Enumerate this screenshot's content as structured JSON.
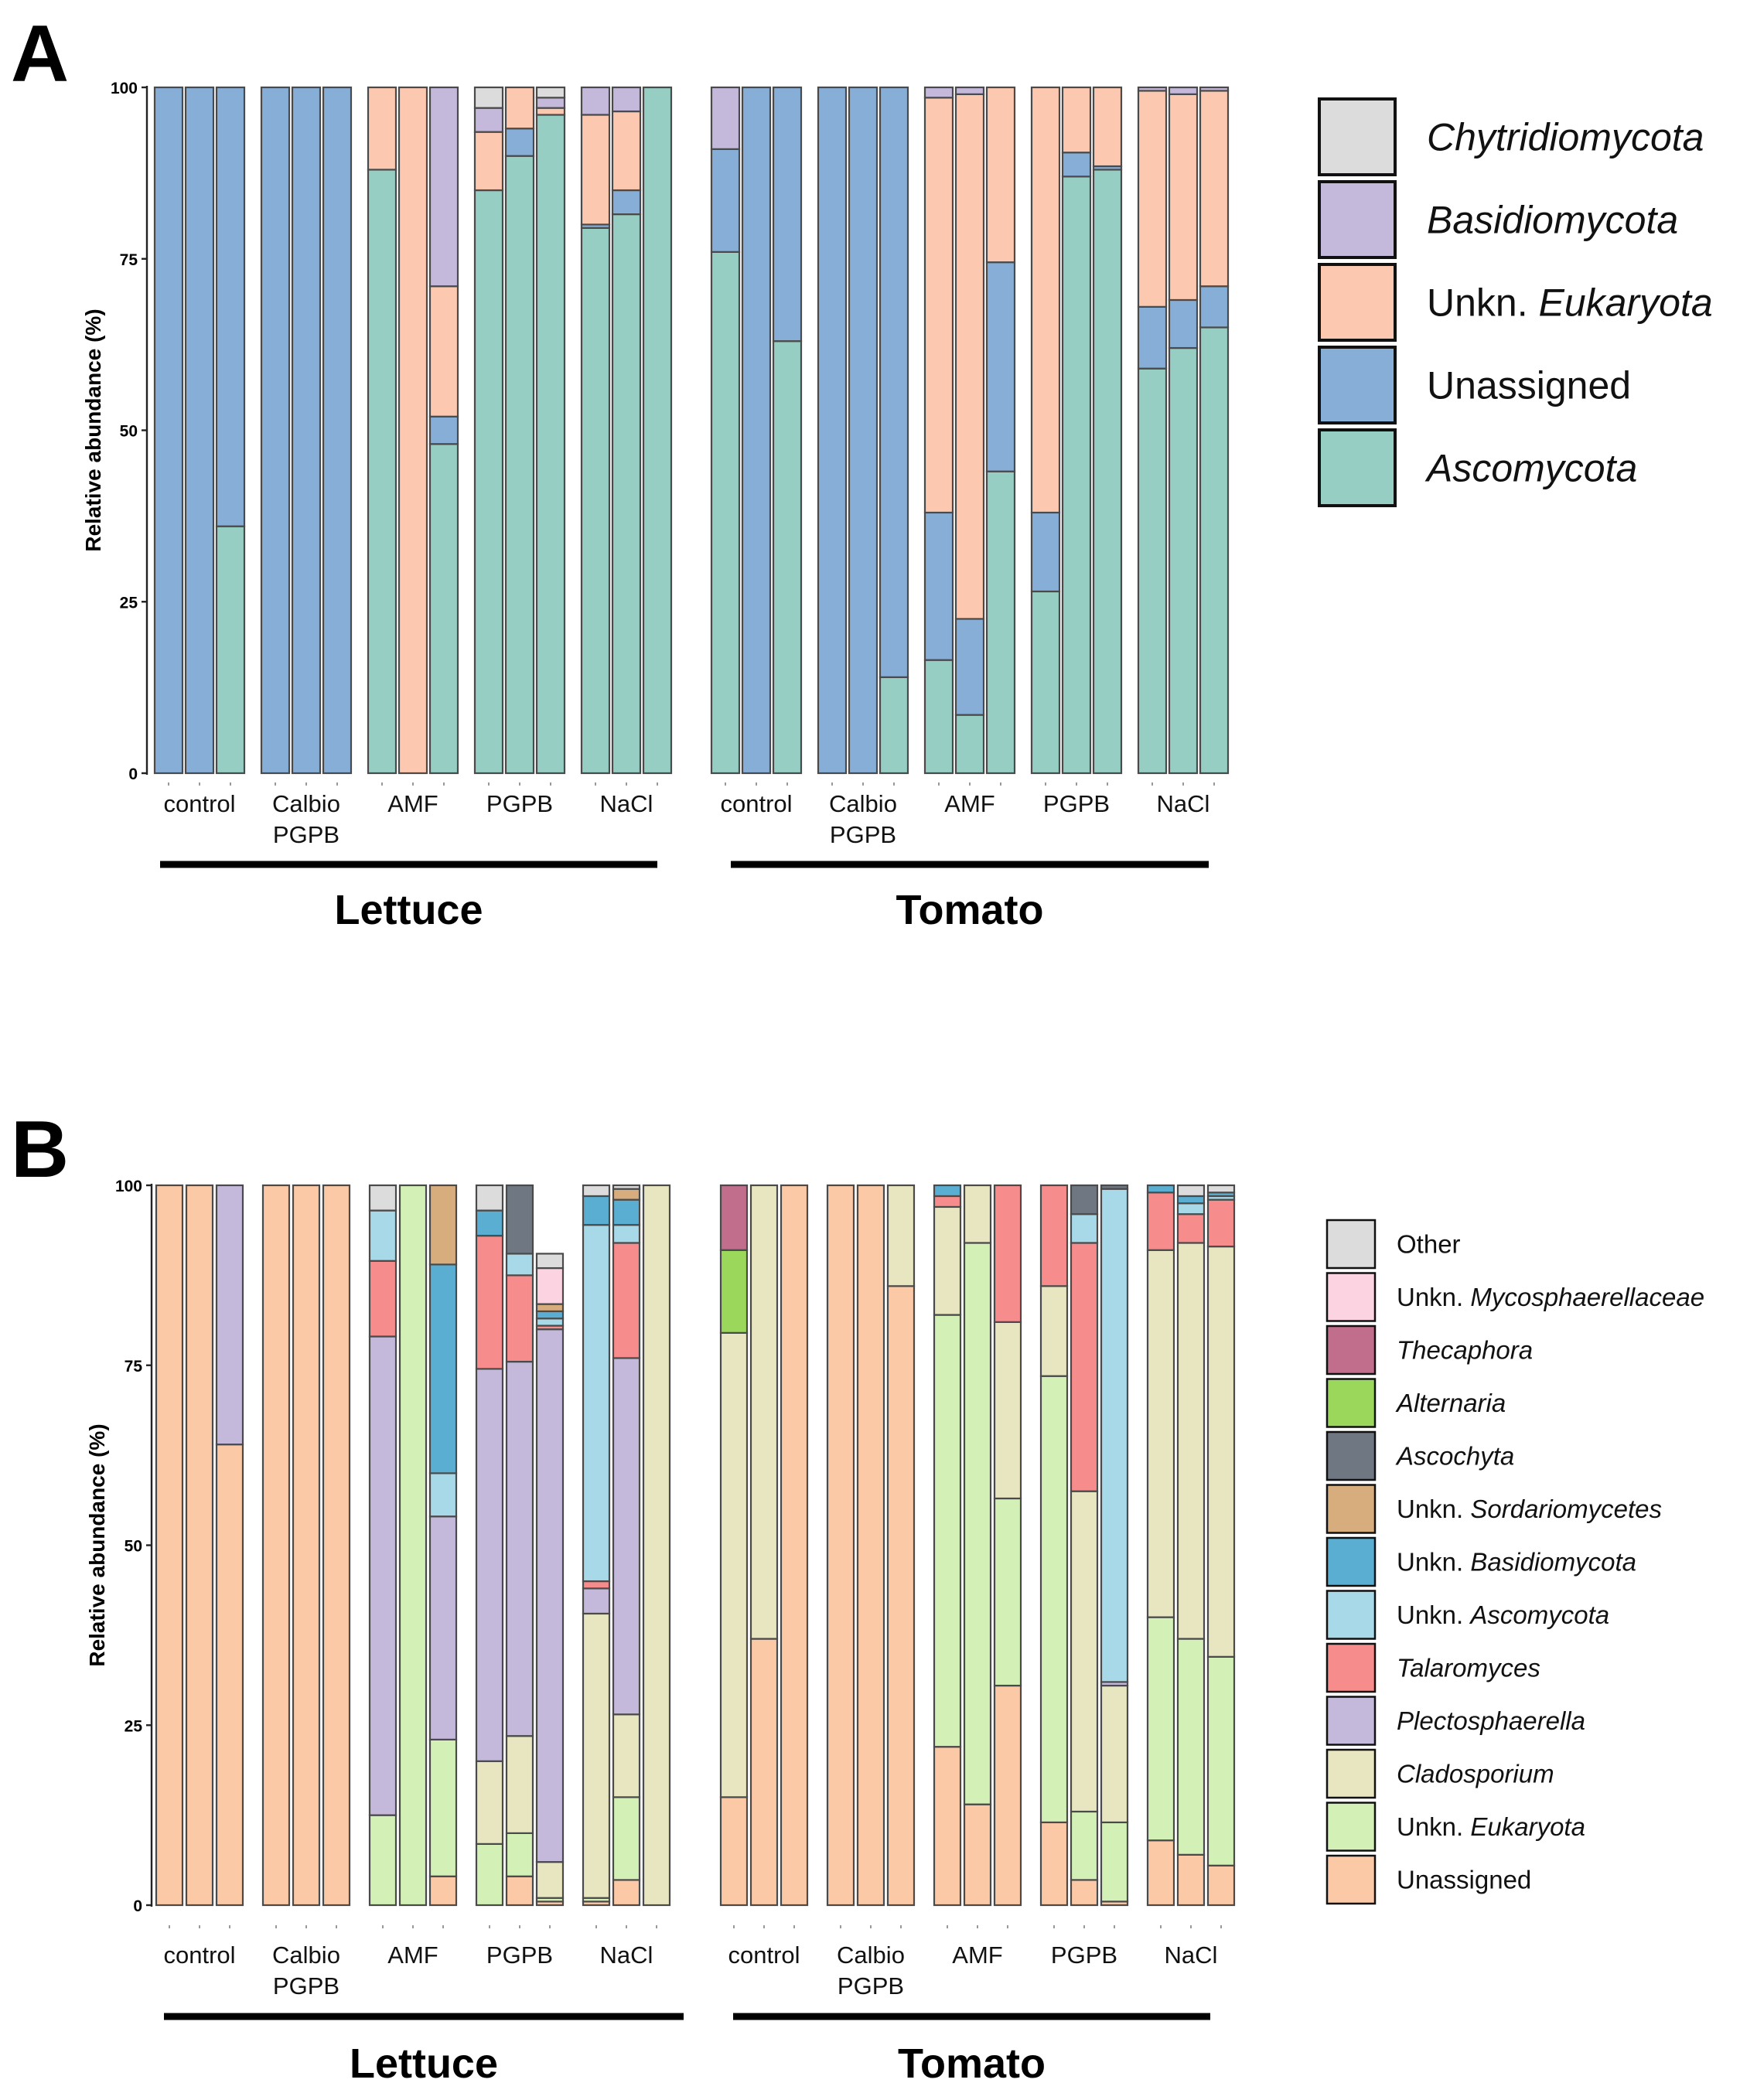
{
  "panel_labels": [
    "A",
    "B"
  ],
  "chart_data": [
    {
      "type": "bar",
      "stacked": true,
      "title": "A",
      "ylabel": "Relative abundance (%)",
      "ylim": [
        0,
        100
      ],
      "yticks": [
        "0",
        "25",
        "50",
        "75",
        "100"
      ],
      "groups": [
        {
          "crop": "Lettuce",
          "labels": [
            "control"
          ]
        },
        {
          "crop": "Lettuce",
          "labels": [
            "Calbio",
            "PGPB"
          ]
        },
        {
          "crop": "Lettuce",
          "labels": [
            "AMF"
          ]
        },
        {
          "crop": "Lettuce",
          "labels": [
            "PGPB"
          ]
        },
        {
          "crop": "Lettuce",
          "labels": [
            "NaCl"
          ]
        },
        {
          "crop": "Tomato",
          "labels": [
            "control"
          ]
        },
        {
          "crop": "Tomato",
          "labels": [
            "Calbio",
            "PGPB"
          ]
        },
        {
          "crop": "Tomato",
          "labels": [
            "AMF"
          ]
        },
        {
          "crop": "Tomato",
          "labels": [
            "PGPB"
          ]
        },
        {
          "crop": "Tomato",
          "labels": [
            "NaCl"
          ]
        }
      ],
      "crops": [
        "Lettuce",
        "Tomato"
      ],
      "legend": [
        {
          "name": "Chytridiomycota",
          "parts": [
            {
              "t": "Chytridiomycota",
              "i": true
            }
          ],
          "color": "#dcdcdc"
        },
        {
          "name": "Basidiomycota",
          "parts": [
            {
              "t": "Basidiomycota",
              "i": true
            }
          ],
          "color": "#c4b8db"
        },
        {
          "name": "Unkn. Eukaryota",
          "parts": [
            {
              "t": "Unkn. ",
              "i": false
            },
            {
              "t": "Eukaryota",
              "i": true
            }
          ],
          "color": "#fcc9b0"
        },
        {
          "name": "Unassigned",
          "parts": [
            {
              "t": "Unassigned",
              "i": false
            }
          ],
          "color": "#87aed6"
        },
        {
          "name": "Ascomycota",
          "parts": [
            {
              "t": "Ascomycota",
              "i": true
            }
          ],
          "color": "#97cec3"
        }
      ],
      "series_order_bottom_up": [
        "Ascomycota",
        "Unassigned",
        "Unkn. Eukaryota",
        "Basidiomycota",
        "Chytridiomycota"
      ],
      "bars": [
        [
          0,
          100,
          0,
          0,
          0
        ],
        [
          0,
          100,
          0,
          0,
          0
        ],
        [
          36,
          64,
          0,
          0,
          0
        ],
        [
          0,
          100,
          0,
          0,
          0
        ],
        [
          0,
          100,
          0,
          0,
          0
        ],
        [
          0,
          100,
          0,
          0,
          0
        ],
        [
          88,
          0,
          12,
          0,
          0
        ],
        [
          0,
          0,
          100,
          0,
          0
        ],
        [
          48,
          4,
          19,
          29,
          0
        ],
        [
          85,
          0,
          8.5,
          3.5,
          3
        ],
        [
          90,
          4,
          6,
          0,
          0
        ],
        [
          96,
          0,
          1,
          1.5,
          1.5
        ],
        [
          79.5,
          0.5,
          16,
          4,
          0
        ],
        [
          81.5,
          3.5,
          11.5,
          3.5,
          0
        ],
        [
          100,
          0,
          0,
          0,
          0
        ],
        [
          76,
          15,
          0,
          9,
          0
        ],
        [
          0,
          100,
          0,
          0,
          0
        ],
        [
          63,
          37,
          0,
          0,
          0
        ],
        [
          0,
          100,
          0,
          0,
          0
        ],
        [
          0,
          100,
          0,
          0,
          0
        ],
        [
          14,
          86,
          0,
          0,
          0
        ],
        [
          16.5,
          21.5,
          60.5,
          1.5,
          0
        ],
        [
          8.5,
          14,
          76.5,
          1,
          0
        ],
        [
          44,
          30.5,
          25.5,
          0,
          0
        ],
        [
          26.5,
          11.5,
          62,
          0,
          0
        ],
        [
          87,
          3.5,
          9.5,
          0,
          0
        ],
        [
          88,
          0.5,
          11.5,
          0,
          0
        ],
        [
          59,
          9,
          31.5,
          0.5,
          0
        ],
        [
          62,
          7,
          30,
          1,
          0
        ],
        [
          65,
          6,
          28.5,
          0.5,
          0
        ]
      ]
    },
    {
      "type": "bar",
      "stacked": true,
      "title": "B",
      "ylabel": "Relative abundance (%)",
      "ylim": [
        0,
        100
      ],
      "yticks": [
        "0",
        "25",
        "50",
        "75",
        "100"
      ],
      "groups": [
        {
          "crop": "Lettuce",
          "labels": [
            "control"
          ]
        },
        {
          "crop": "Lettuce",
          "labels": [
            "Calbio",
            "PGPB"
          ]
        },
        {
          "crop": "Lettuce",
          "labels": [
            "AMF"
          ]
        },
        {
          "crop": "Lettuce",
          "labels": [
            "PGPB"
          ]
        },
        {
          "crop": "Lettuce",
          "labels": [
            "NaCl"
          ]
        },
        {
          "crop": "Tomato",
          "labels": [
            "control"
          ]
        },
        {
          "crop": "Tomato",
          "labels": [
            "Calbio",
            "PGPB"
          ]
        },
        {
          "crop": "Tomato",
          "labels": [
            "AMF"
          ]
        },
        {
          "crop": "Tomato",
          "labels": [
            "PGPB"
          ]
        },
        {
          "crop": "Tomato",
          "labels": [
            "NaCl"
          ]
        }
      ],
      "crops": [
        "Lettuce",
        "Tomato"
      ],
      "legend": [
        {
          "name": "Other",
          "parts": [
            {
              "t": "Other",
              "i": false
            }
          ],
          "color": "#dcdcdc"
        },
        {
          "name": "Unkn. Mycosphaerellaceae",
          "parts": [
            {
              "t": "Unkn. ",
              "i": false
            },
            {
              "t": "Mycosphaerellaceae",
              "i": true
            }
          ],
          "color": "#fcd3e1"
        },
        {
          "name": "Thecaphora",
          "parts": [
            {
              "t": "Thecaphora",
              "i": true
            }
          ],
          "color": "#c06e8c"
        },
        {
          "name": "Alternaria",
          "parts": [
            {
              "t": "Alternaria",
              "i": true
            }
          ],
          "color": "#9bd75a"
        },
        {
          "name": "Ascochyta",
          "parts": [
            {
              "t": "Ascochyta",
              "i": true
            }
          ],
          "color": "#6e7782"
        },
        {
          "name": "Unkn. Sordariomycetes",
          "parts": [
            {
              "t": "Unkn. ",
              "i": false
            },
            {
              "t": "Sordariomycetes",
              "i": true
            }
          ],
          "color": "#d8ad7e"
        },
        {
          "name": "Unkn. Basidiomycota",
          "parts": [
            {
              "t": "Unkn. ",
              "i": false
            },
            {
              "t": "Basidiomycota",
              "i": true
            }
          ],
          "color": "#5aaed1"
        },
        {
          "name": "Unkn. Ascomycota",
          "parts": [
            {
              "t": "Unkn. ",
              "i": false
            },
            {
              "t": "Ascomycota",
              "i": true
            }
          ],
          "color": "#a8d9e8"
        },
        {
          "name": "Talaromyces",
          "parts": [
            {
              "t": "Talaromyces",
              "i": true
            }
          ],
          "color": "#f78c8c"
        },
        {
          "name": "Plectosphaerella",
          "parts": [
            {
              "t": "Plectosphaerella",
              "i": true
            }
          ],
          "color": "#c4b8db"
        },
        {
          "name": "Cladosporium",
          "parts": [
            {
              "t": "Cladosporium",
              "i": true
            }
          ],
          "color": "#e8e6c1"
        },
        {
          "name": "Unkn. Eukaryota",
          "parts": [
            {
              "t": "Unkn. ",
              "i": false
            },
            {
              "t": "Eukaryota",
              "i": true
            }
          ],
          "color": "#d3f0b6"
        },
        {
          "name": "Unassigned",
          "parts": [
            {
              "t": "Unassigned",
              "i": false
            }
          ],
          "color": "#fcc9a7"
        }
      ],
      "series_order_bottom_up": [
        "Unassigned",
        "Unkn. Eukaryota",
        "Cladosporium",
        "Plectosphaerella",
        "Talaromyces",
        "Unkn. Ascomycota",
        "Unkn. Basidiomycota",
        "Unkn. Sordariomycetes",
        "Ascochyta",
        "Alternaria",
        "Thecaphora",
        "Unkn. Mycosphaerellaceae",
        "Other"
      ],
      "bars": [
        [
          100,
          0,
          0,
          0,
          0,
          0,
          0,
          0,
          0,
          0,
          0,
          0,
          0
        ],
        [
          100,
          0,
          0,
          0,
          0,
          0,
          0,
          0,
          0,
          0,
          0,
          0,
          0
        ],
        [
          64,
          0,
          0,
          36,
          0,
          0,
          0,
          0,
          0,
          0,
          0,
          0,
          0
        ],
        [
          100,
          0,
          0,
          0,
          0,
          0,
          0,
          0,
          0,
          0,
          0,
          0,
          0
        ],
        [
          100,
          0,
          0,
          0,
          0,
          0,
          0,
          0,
          0,
          0,
          0,
          0,
          0
        ],
        [
          100,
          0,
          0,
          0,
          0,
          0,
          0,
          0,
          0,
          0,
          0,
          0,
          0
        ],
        [
          0,
          12.5,
          0,
          66.5,
          10.5,
          7,
          0,
          0,
          0,
          0,
          0,
          0,
          3.5
        ],
        [
          0,
          100,
          0,
          0,
          0,
          0,
          0,
          0,
          0,
          0,
          0,
          0,
          0
        ],
        [
          4,
          19,
          0,
          31,
          0,
          6,
          29,
          11,
          0,
          0,
          0,
          0,
          0
        ],
        [
          0,
          8.5,
          11.5,
          54.5,
          18.5,
          0,
          3.5,
          0,
          0,
          0,
          0,
          0,
          3.5
        ],
        [
          4,
          6,
          13.5,
          52,
          12,
          3,
          0,
          0,
          9.5,
          0,
          0,
          0,
          0
        ],
        [
          0.5,
          0.5,
          5,
          74,
          0.5,
          1,
          1,
          1,
          0,
          0,
          0,
          5,
          2
        ],
        [
          0.5,
          0.5,
          39.5,
          3.5,
          1,
          49.5,
          4,
          0,
          0,
          0,
          0,
          0,
          1.5
        ],
        [
          3.5,
          11.5,
          11.5,
          49.5,
          16,
          2.5,
          3.5,
          1.5,
          0,
          0,
          0,
          0,
          0.5
        ],
        [
          0,
          0,
          100,
          0,
          0,
          0,
          0,
          0,
          0,
          0,
          0,
          0,
          0
        ],
        [
          15,
          0,
          64.5,
          0,
          0,
          0,
          0,
          0,
          0,
          11.5,
          9,
          0,
          0
        ],
        [
          37,
          0,
          63,
          0,
          0,
          0,
          0,
          0,
          0,
          0,
          0,
          0,
          0
        ],
        [
          100,
          0,
          0,
          0,
          0,
          0,
          0,
          0,
          0,
          0,
          0,
          0,
          0
        ],
        [
          100,
          0,
          0,
          0,
          0,
          0,
          0,
          0,
          0,
          0,
          0,
          0,
          0
        ],
        [
          100,
          0,
          0,
          0,
          0,
          0,
          0,
          0,
          0,
          0,
          0,
          0,
          0
        ],
        [
          86,
          0,
          14,
          0,
          0,
          0,
          0,
          0,
          0,
          0,
          0,
          0,
          0
        ],
        [
          22,
          60,
          15,
          0,
          1.5,
          0,
          1.5,
          0,
          0,
          0,
          0,
          0,
          0
        ],
        [
          14,
          78,
          8,
          0,
          0,
          0,
          0,
          0,
          0,
          0,
          0,
          0,
          0
        ],
        [
          30.5,
          26,
          24.5,
          0,
          19,
          0,
          0,
          0,
          0,
          0,
          0,
          0,
          0
        ],
        [
          11.5,
          62,
          12.5,
          0,
          14,
          0,
          0,
          0,
          0,
          0,
          0,
          0,
          0
        ],
        [
          3.5,
          9.5,
          44.5,
          0,
          34.5,
          4,
          0,
          0,
          4,
          0,
          0,
          0,
          0
        ],
        [
          0.5,
          11,
          19,
          0.5,
          0,
          68.5,
          0,
          0,
          0.5,
          0,
          0,
          0,
          0
        ],
        [
          9,
          31,
          51,
          0,
          8,
          0,
          1,
          0,
          0,
          0,
          0,
          0,
          0
        ],
        [
          7,
          30,
          55,
          0,
          4,
          1.5,
          1,
          0,
          0,
          0,
          0,
          0,
          1.5
        ],
        [
          5.5,
          29,
          57,
          0,
          6.5,
          0.5,
          0.5,
          0,
          0,
          0,
          0,
          0,
          1
        ]
      ]
    }
  ]
}
